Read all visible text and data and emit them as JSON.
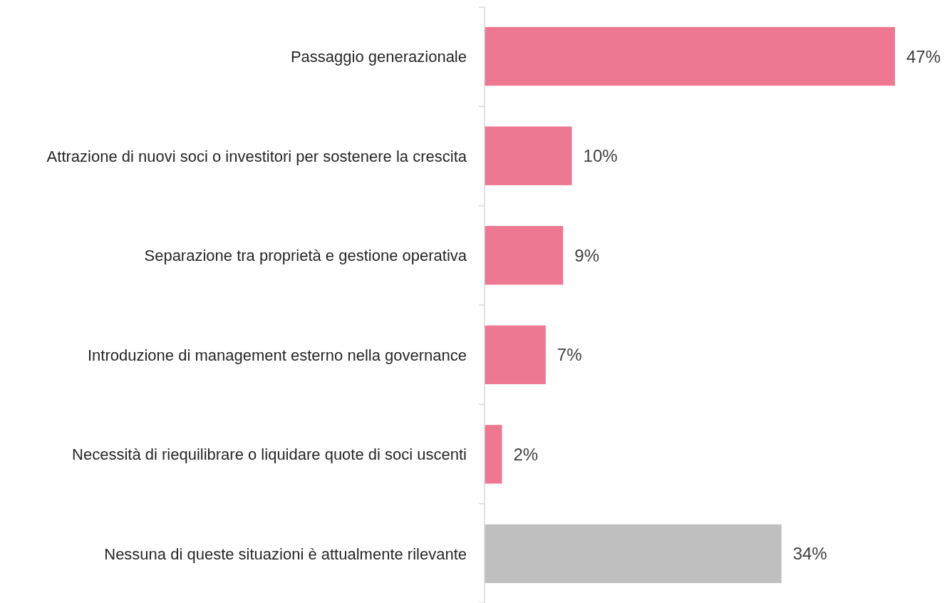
{
  "chart_data": {
    "type": "bar",
    "orientation": "horizontal",
    "categories": [
      "Passaggio generazionale",
      "Attrazione di nuovi soci o investitori per sostenere la crescita",
      "Separazione tra proprietà e gestione operativa",
      "Introduzione di management esterno nella governance",
      "Necessità di riequilibrare o liquidare quote di soci uscenti",
      "Nessuna di queste situazioni è attualmente rilevante"
    ],
    "values": [
      47,
      10,
      9,
      7,
      2,
      34
    ],
    "colors": [
      "#ee7792",
      "#ee7792",
      "#ee7792",
      "#ee7792",
      "#ee7792",
      "#bfbfbf"
    ],
    "value_labels": [
      "47%",
      "10%",
      "9%",
      "7%",
      "2%",
      "34%"
    ]
  }
}
